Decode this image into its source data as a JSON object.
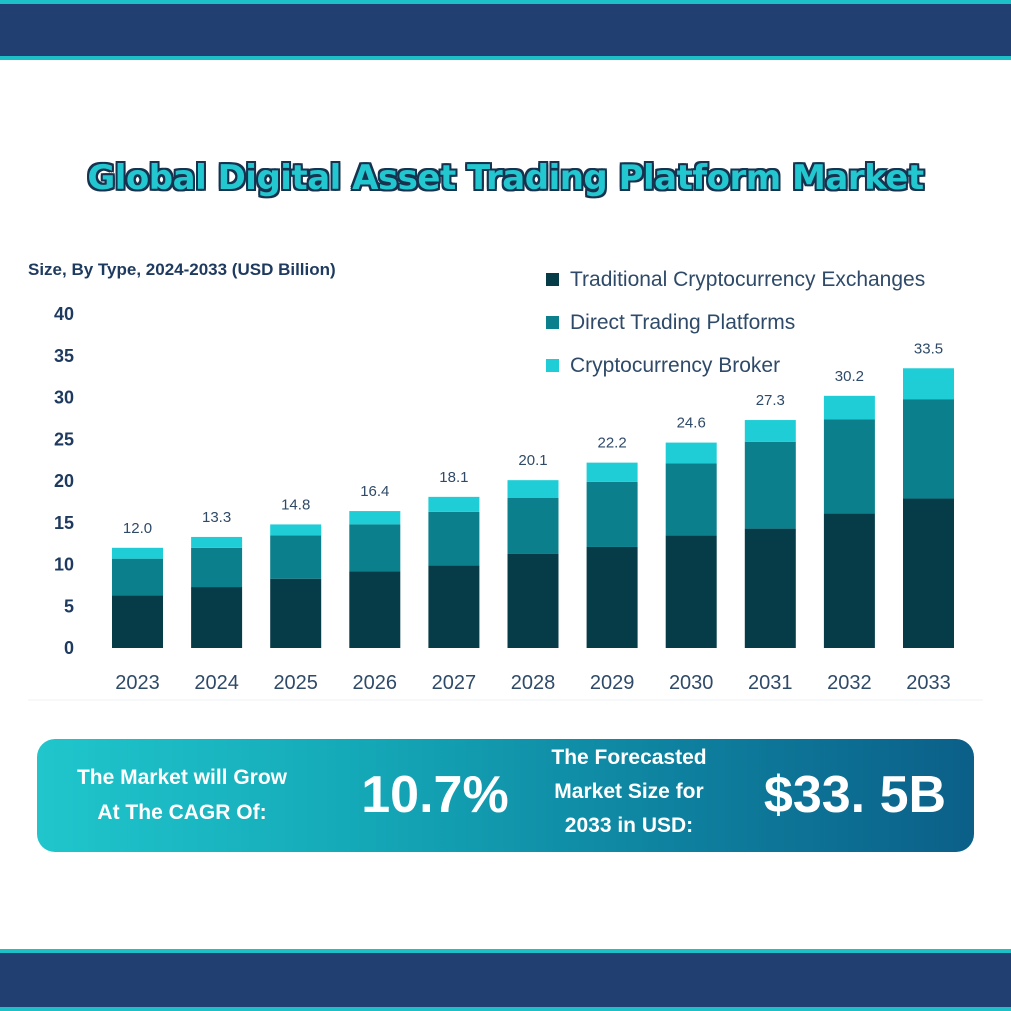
{
  "title": "Global Digital Asset Trading Platform Market",
  "subtitle": "Size, By Type, 2024-2033 (USD Billion)",
  "colors": {
    "band": "#213f70",
    "band_accent": "#1ec0c8",
    "series": [
      "#063c48",
      "#0b7f8c",
      "#1ecdd6"
    ]
  },
  "banner": {
    "cagr_label_line1": "The Market will Grow",
    "cagr_label_line2": "At The CAGR Of:",
    "cagr_value": "10.7%",
    "forecast_label_line1": "The Forecasted",
    "forecast_label_line2": "Market Size for",
    "forecast_label_line3": "2033 in USD:",
    "forecast_value": "$33. 5B"
  },
  "chart_data": {
    "type": "bar",
    "stacked": true,
    "categories": [
      "2023",
      "2024",
      "2025",
      "2026",
      "2027",
      "2028",
      "2029",
      "2030",
      "2031",
      "2032",
      "2033"
    ],
    "series": [
      {
        "name": "Traditional Cryptocurrency Exchanges",
        "values": [
          6.3,
          7.3,
          8.3,
          9.2,
          9.9,
          11.3,
          12.1,
          13.5,
          14.3,
          16.1,
          17.9
        ]
      },
      {
        "name": "Direct Trading Platforms",
        "values": [
          4.4,
          4.7,
          5.2,
          5.6,
          6.4,
          6.7,
          7.8,
          8.6,
          10.4,
          11.3,
          11.9
        ]
      },
      {
        "name": "Cryptocurrency Broker",
        "values": [
          1.3,
          1.3,
          1.3,
          1.6,
          1.8,
          2.1,
          2.3,
          2.5,
          2.6,
          2.8,
          3.7
        ]
      }
    ],
    "totals": [
      "12.0",
      "13.3",
      "14.8",
      "16.4",
      "18.1",
      "20.1",
      "22.2",
      "24.6",
      "27.3",
      "30.2",
      "33.5"
    ],
    "y_ticks": [
      "0",
      "5",
      "10",
      "15",
      "20",
      "25",
      "30",
      "35",
      "40"
    ],
    "ylim": [
      0,
      40
    ],
    "grid": false,
    "legend_position": "top-right"
  }
}
